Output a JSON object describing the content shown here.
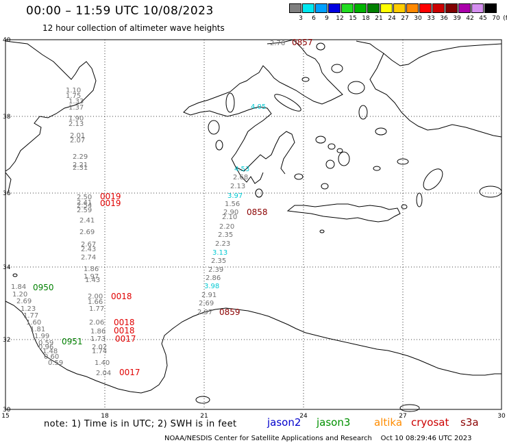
{
  "header": {
    "title": "00:00 – 11:59 UTC 10/08/2023",
    "subtitle": "12 hour collection of altimeter wave heights"
  },
  "legend": {
    "unit": "(ft)",
    "bins": [
      {
        "label": "3",
        "color": "#7f7f7f"
      },
      {
        "label": "6",
        "color": "#00e8f0"
      },
      {
        "label": "9",
        "color": "#00a0ff"
      },
      {
        "label": "12",
        "color": "#0000e0"
      },
      {
        "label": "15",
        "color": "#22dd22"
      },
      {
        "label": "18",
        "color": "#00b400"
      },
      {
        "label": "21",
        "color": "#008000"
      },
      {
        "label": "24",
        "color": "#ffff00"
      },
      {
        "label": "27",
        "color": "#ffcc00"
      },
      {
        "label": "30",
        "color": "#ff8800"
      },
      {
        "label": "33",
        "color": "#ff0000"
      },
      {
        "label": "36",
        "color": "#cc0000"
      },
      {
        "label": "39",
        "color": "#800000"
      },
      {
        "label": "42",
        "color": "#aa00aa"
      },
      {
        "label": "45",
        "color": "#d58ff0"
      },
      {
        "label": "70",
        "color": "#000000"
      }
    ]
  },
  "axes": {
    "lat_labels": [
      "40",
      "38",
      "36",
      "34",
      "32",
      "30"
    ],
    "lon_labels": [
      "15",
      "18",
      "21",
      "24",
      "27",
      "30"
    ]
  },
  "tracks": [
    {
      "sat": "cryosat",
      "time": "0019",
      "color": "#e00000",
      "values": [
        "1.10",
        "1.75",
        "1.33",
        "1.37",
        "1.90",
        "2.13",
        "2.01",
        "2.07",
        "2.29",
        "2.21",
        "2.31",
        "2.50",
        "2.41",
        "2.54",
        "2.59",
        "2.41",
        "2.69",
        "2.67",
        "2.43",
        "2.74",
        "1.86",
        "1.97",
        "1.43"
      ]
    },
    {
      "sat": "cryosat",
      "time": "0018",
      "color": "#e00000",
      "values": [
        "2.00",
        "1.66",
        "1.77",
        "2.06",
        "1.86",
        "1.73",
        "2.02",
        "1.74",
        "1.40",
        "2.04"
      ]
    },
    {
      "sat": "cryosat",
      "time": "0018",
      "color": "#e00000",
      "values": []
    },
    {
      "sat": "cryosat",
      "time": "0018",
      "color": "#e00000",
      "values": []
    },
    {
      "sat": "cryosat",
      "time": "0017",
      "color": "#e00000",
      "values": []
    },
    {
      "sat": "cryosat",
      "time": "0017",
      "color": "#e00000",
      "values": []
    },
    {
      "sat": "cryosat",
      "time": "0019",
      "color": "#e00000",
      "values": []
    },
    {
      "sat": "s3a",
      "time": "0857",
      "color": "#8b0000",
      "values": [
        "2.76"
      ]
    },
    {
      "sat": "s3a",
      "time": "0858",
      "color": "#8b0000",
      "values": [
        "4.05",
        "4.53",
        "2.68",
        "2.13",
        "3.97",
        "1.56",
        "2.90",
        "2.10",
        "2.20",
        "2.35",
        "2.23",
        "3.13",
        "2.35",
        "2.39",
        "2.86",
        "3.98",
        "2.91",
        "2.69",
        "2.97"
      ]
    },
    {
      "sat": "s3a",
      "time": "0859",
      "color": "#8b0000",
      "values": []
    },
    {
      "sat": "jason3",
      "time": "0950",
      "color": "#008000",
      "values": [
        "1.84",
        "1.20",
        "2.69",
        "1.23",
        "1.77",
        "1.60",
        "1.81",
        "1.99",
        "0.59",
        "0.96",
        "1.48",
        "0.60",
        "0.59"
      ]
    },
    {
      "sat": "jason3",
      "time": "0951",
      "color": "#008000",
      "values": []
    }
  ],
  "note": "note:  1) Time is in UTC;  2) SWH is in feet",
  "satellites": [
    {
      "name": "jason2",
      "color": "#0000cc"
    },
    {
      "name": "jason3",
      "color": "#009000"
    },
    {
      "name": "altika",
      "color": "#ff8c00"
    },
    {
      "name": "cryosat",
      "color": "#cc0000"
    },
    {
      "name": "s3a",
      "color": "#8b0000"
    }
  ],
  "credit": "NOAA/NESDIS Center for Satellite Applications and Research",
  "timestamp": "Oct 10 08:29:46 UTC 2023"
}
